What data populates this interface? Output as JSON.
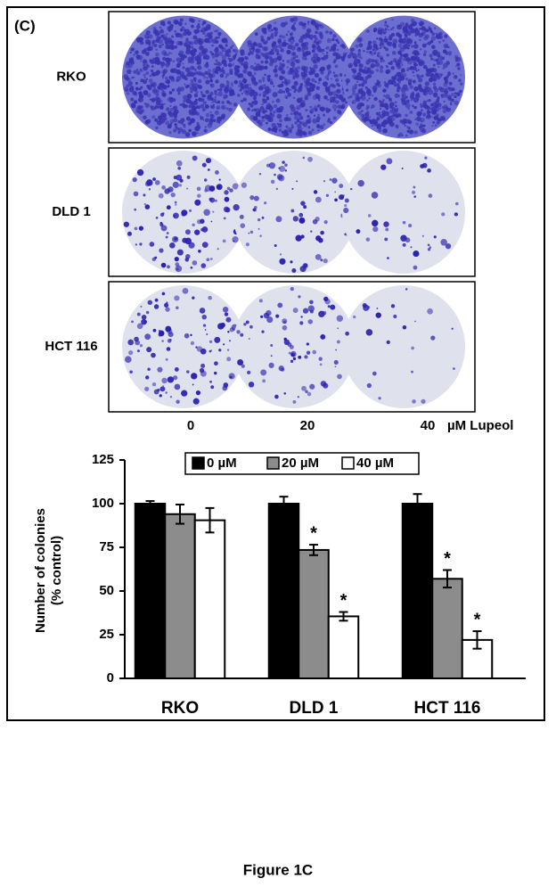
{
  "panel_label": "(C)",
  "plates": {
    "rows": [
      "RKO",
      "DLD 1",
      "HCT 116"
    ],
    "columns": [
      "0",
      "20",
      "40"
    ],
    "unit": "µM Lupeol"
  },
  "chart_data": {
    "type": "bar",
    "ylabel": [
      "Number of colonies",
      "(% control)"
    ],
    "categories": [
      "RKO",
      "DLD 1",
      "HCT 116"
    ],
    "series": [
      {
        "name": "0 µM",
        "color": "#000000",
        "values": [
          100,
          100,
          100
        ],
        "errors": [
          1.5,
          4,
          5.5
        ],
        "labels": [
          null,
          null,
          null
        ]
      },
      {
        "name": "20 µM",
        "color": "#8c8c8c",
        "values": [
          94,
          73.5,
          57
        ],
        "errors": [
          5.5,
          3,
          5
        ],
        "labels": [
          null,
          "*",
          "*"
        ]
      },
      {
        "name": "40 µM",
        "color": "#ffffff",
        "values": [
          90.5,
          35.5,
          22
        ],
        "errors": [
          7,
          2.5,
          5
        ],
        "labels": [
          null,
          "*",
          "*"
        ]
      }
    ],
    "ylim": [
      0,
      125
    ],
    "yticks": [
      0,
      25,
      50,
      75,
      100,
      125
    ],
    "grid": false,
    "legend": "top"
  },
  "caption": "Figure 1C"
}
